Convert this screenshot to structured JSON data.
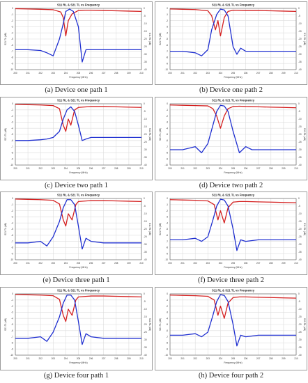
{
  "chart_data": [
    {
      "type": "line",
      "title": "S11 RL  &  S21 TL   vs    Frequency",
      "xlabel": "Frequency (MHz)",
      "ylabel_left": "S21 TL (dB)",
      "ylabel_right": "S11 RL (dB)",
      "xlim": [
        200,
        210
      ],
      "ylim_left": [
        -10,
        0
      ],
      "ylim_right": [
        -40,
        0
      ],
      "x_ticks": [
        "200",
        "201",
        "202",
        "203",
        "204",
        "205",
        "206",
        "207",
        "208",
        "209",
        "210"
      ],
      "y_left_ticks": [
        "0",
        "-1",
        "-2",
        "-3",
        "-4",
        "-5",
        "-6",
        "-7",
        "-8",
        "-9",
        "-10"
      ],
      "y_right_ticks": [
        "0",
        "-5",
        "-10",
        "-15",
        "-20",
        "-25",
        "-30",
        "-35",
        "-40"
      ],
      "grid": true,
      "series": [
        {
          "color": "#d42020",
          "x": [
            200,
            201,
            202,
            203,
            203.6,
            203.8,
            204.0,
            204.2,
            204.5,
            205,
            205.5,
            206,
            207,
            208,
            209,
            210
          ],
          "y": [
            -0.05,
            -0.1,
            -0.15,
            -0.22,
            -0.6,
            -1.5,
            -4.5,
            -2.0,
            -0.9,
            -0.35,
            -0.3,
            -0.3,
            -0.35,
            -0.4,
            -0.45,
            -0.5
          ]
        },
        {
          "color": "#1f2fd0",
          "x": [
            200,
            201,
            202,
            202.5,
            203,
            203.5,
            203.8,
            204.0,
            204.3,
            204.6,
            205,
            205.3,
            205.6,
            206,
            207,
            208,
            209,
            210
          ],
          "y": [
            -27,
            -27,
            -27.5,
            -29,
            -31,
            -20,
            -10,
            -2,
            -0.5,
            -2,
            -12,
            -35,
            -27,
            -27,
            -27,
            -27,
            -27,
            -27
          ]
        }
      ]
    },
    {
      "type": "line",
      "title": "S11 RL  &  S21 TL   vs    Frequency",
      "xlabel": "Frequency (MHz)",
      "ylabel_left": "S21 TL (dB)",
      "ylabel_right": "S11 RL (dB)",
      "xlim": [
        200,
        210
      ],
      "ylim_left": [
        -10,
        0
      ],
      "ylim_right": [
        -40,
        0
      ],
      "x_ticks": [
        "200",
        "201",
        "202",
        "203",
        "204",
        "205",
        "206",
        "207",
        "208",
        "209",
        "210"
      ],
      "y_left_ticks": [
        "0",
        "-1",
        "-2",
        "-3",
        "-4",
        "-5",
        "-6",
        "-7",
        "-8",
        "-9",
        "-10"
      ],
      "y_right_ticks": [
        "0",
        "-5",
        "-10",
        "-15",
        "-20",
        "-25",
        "-30",
        "-35",
        "-40"
      ],
      "grid": true,
      "series": [
        {
          "color": "#d42020",
          "x": [
            200,
            201,
            202,
            203,
            203.3,
            203.6,
            203.8,
            204.0,
            204.3,
            204.6,
            205,
            206,
            207,
            208,
            209,
            210
          ],
          "y": [
            -0.1,
            -0.15,
            -0.2,
            -0.4,
            -1.2,
            -3.5,
            -2,
            -4.5,
            -1.5,
            -0.5,
            -0.3,
            -0.35,
            -0.35,
            -0.4,
            -0.45,
            -0.5
          ]
        },
        {
          "color": "#1f2fd0",
          "x": [
            200,
            201,
            202,
            202.5,
            203,
            203.3,
            203.7,
            204.0,
            204.3,
            204.6,
            205,
            205.3,
            205.6,
            206,
            207,
            208,
            209,
            210
          ],
          "y": [
            -28,
            -28,
            -29,
            -31,
            -27,
            -14,
            -4,
            -0.5,
            -1,
            -5,
            -25,
            -30,
            -26,
            -28,
            -28,
            -28,
            -28,
            -28
          ]
        }
      ]
    },
    {
      "type": "line",
      "title": "S11 RL  &  S21 TL   vs    Frequency",
      "xlabel": "Frequency (MHz)",
      "ylabel_left": "S21 TL (dB)",
      "ylabel_right": "S11 RL (dB)",
      "xlim": [
        200,
        210
      ],
      "ylim_left": [
        -10,
        0
      ],
      "ylim_right": [
        -40,
        0
      ],
      "x_ticks": [
        "200",
        "201",
        "202",
        "203",
        "204",
        "205",
        "206",
        "207",
        "208",
        "209",
        "210"
      ],
      "y_left_ticks": [
        "0",
        "-1",
        "-2",
        "-3",
        "-4",
        "-5",
        "-6",
        "-7",
        "-8",
        "-9",
        "-10"
      ],
      "y_right_ticks": [
        "0",
        "-5",
        "-10",
        "-15",
        "-20",
        "-25",
        "-30",
        "-35",
        "-40"
      ],
      "grid": true,
      "series": [
        {
          "color": "#d42020",
          "x": [
            200,
            201,
            202,
            203,
            203.5,
            203.8,
            204.0,
            204.2,
            204.4,
            204.7,
            205,
            206,
            207,
            208,
            209,
            210
          ],
          "y": [
            -0.1,
            -0.15,
            -0.2,
            -0.3,
            -0.8,
            -3.5,
            -4.5,
            -2.5,
            -3.5,
            -1,
            -0.6,
            -0.45,
            -0.45,
            -0.5,
            -0.55,
            -0.6
          ]
        },
        {
          "color": "#1f2fd0",
          "x": [
            200,
            201,
            202,
            202.5,
            203,
            203.5,
            203.8,
            204.1,
            204.4,
            204.7,
            205,
            205.3,
            205.6,
            206,
            207,
            208,
            209,
            210
          ],
          "y": [
            -24,
            -24,
            -23.5,
            -23,
            -22,
            -18,
            -10,
            -4,
            -2,
            -5,
            -14,
            -24,
            -23,
            -22,
            -22,
            -22,
            -22,
            -22
          ]
        }
      ]
    },
    {
      "type": "line",
      "title": "S11 RL  &  S21 TL   vs    Frequency",
      "xlabel": "Frequency (MHz)",
      "ylabel_left": "S21 TL (dB)",
      "ylabel_right": "S11 RL (dB)",
      "xlim": [
        200,
        210
      ],
      "ylim_left": [
        -10,
        0
      ],
      "ylim_right": [
        -40,
        0
      ],
      "x_ticks": [
        "200",
        "201",
        "202",
        "203",
        "204",
        "205",
        "206",
        "207",
        "208",
        "209",
        "210"
      ],
      "y_left_ticks": [
        "0",
        "-1",
        "-2",
        "-3",
        "-4",
        "-5",
        "-6",
        "-7",
        "-8",
        "-9",
        "-10"
      ],
      "y_right_ticks": [
        "0",
        "-5",
        "-10",
        "-15",
        "-20",
        "-25",
        "-30",
        "-35",
        "-40"
      ],
      "grid": true,
      "series": [
        {
          "color": "#d42020",
          "x": [
            200,
            201,
            202,
            203,
            203.4,
            203.7,
            204.0,
            204.3,
            204.6,
            205,
            205.5,
            206,
            207,
            208,
            209,
            210
          ],
          "y": [
            -0.2,
            -0.25,
            -0.3,
            -0.35,
            -0.8,
            -2,
            -4,
            -2,
            -0.8,
            -0.45,
            -0.4,
            -0.45,
            -0.5,
            -0.55,
            -0.6,
            -0.65
          ]
        },
        {
          "color": "#1f2fd0",
          "x": [
            200,
            201,
            202,
            202.5,
            203,
            203.4,
            203.7,
            204.0,
            204.3,
            204.6,
            205,
            205.5,
            206,
            206.5,
            207,
            208,
            209,
            210
          ],
          "y": [
            -30,
            -30,
            -28,
            -32,
            -26,
            -14,
            -5,
            -1,
            -1.5,
            -5,
            -18,
            -32,
            -28,
            -30,
            -30,
            -30,
            -30,
            -30
          ]
        }
      ]
    },
    {
      "type": "line",
      "title": "S11 RL  &  S21 TL   vs    Frequency",
      "xlabel": "Frequency (MHz)",
      "ylabel_left": "S21 TL (dB)",
      "ylabel_right": "S11 RL (dB)",
      "xlim": [
        200,
        210
      ],
      "ylim_left": [
        -10,
        0
      ],
      "ylim_right": [
        -40,
        0
      ],
      "x_ticks": [
        "200",
        "201",
        "202",
        "203",
        "204",
        "205",
        "206",
        "207",
        "208",
        "209",
        "210"
      ],
      "y_left_ticks": [
        "0",
        "-1",
        "-2",
        "-3",
        "-4",
        "-5",
        "-6",
        "-7",
        "-8",
        "-9",
        "-10"
      ],
      "y_right_ticks": [
        "0",
        "-5",
        "-10",
        "-15",
        "-20",
        "-25",
        "-30",
        "-35",
        "-40"
      ],
      "grid": true,
      "series": [
        {
          "color": "#d42020",
          "x": [
            200,
            201,
            202,
            203,
            203.5,
            203.8,
            204.0,
            204.2,
            204.5,
            204.8,
            205,
            206,
            207,
            208,
            209,
            210
          ],
          "y": [
            -0.1,
            -0.15,
            -0.2,
            -0.3,
            -0.9,
            -3.5,
            -4.5,
            -2.5,
            -3.5,
            -1,
            -0.5,
            -0.35,
            -0.35,
            -0.4,
            -0.45,
            -0.5
          ]
        },
        {
          "color": "#1f2fd0",
          "x": [
            200,
            201,
            202,
            202.5,
            203,
            203.5,
            203.8,
            204.1,
            204.4,
            204.7,
            205,
            205.3,
            205.6,
            206,
            207,
            208,
            209,
            210
          ],
          "y": [
            -29,
            -29,
            -28,
            -31,
            -25,
            -15,
            -6,
            -0.8,
            -0.8,
            -4,
            -18,
            -33,
            -26,
            -28,
            -29,
            -29,
            -29,
            -29
          ]
        }
      ]
    },
    {
      "type": "line",
      "title": "S11 RL  &  S21 TL   vs    Frequency",
      "xlabel": "Frequency (MHz)",
      "ylabel_left": "S21 TL (dB)",
      "ylabel_right": "S11 RL (dB)",
      "xlim": [
        200,
        210
      ],
      "ylim_left": [
        -10,
        0
      ],
      "ylim_right": [
        -40,
        0
      ],
      "x_ticks": [
        "200",
        "201",
        "202",
        "203",
        "204",
        "205",
        "206",
        "207",
        "208",
        "209",
        "210"
      ],
      "y_left_ticks": [
        "0",
        "-1",
        "-2",
        "-3",
        "-4",
        "-5",
        "-6",
        "-7",
        "-8",
        "-9",
        "-10"
      ],
      "y_right_ticks": [
        "0",
        "-5",
        "-10",
        "-15",
        "-20",
        "-25",
        "-30",
        "-35",
        "-40"
      ],
      "grid": true,
      "series": [
        {
          "color": "#d42020",
          "x": [
            200,
            201,
            202,
            203,
            203.5,
            203.8,
            204.0,
            204.3,
            204.6,
            205,
            205.5,
            206,
            207,
            208,
            209,
            210
          ],
          "y": [
            -0.2,
            -0.25,
            -0.3,
            -0.4,
            -1,
            -3.5,
            -2,
            -4,
            -1.5,
            -0.6,
            -0.5,
            -0.5,
            -0.55,
            -0.6,
            -0.65,
            -0.7
          ]
        },
        {
          "color": "#1f2fd0",
          "x": [
            200,
            201,
            202,
            202.5,
            203,
            203.4,
            203.7,
            204.0,
            204.3,
            204.6,
            205,
            205.3,
            205.6,
            206,
            207,
            208,
            209,
            210
          ],
          "y": [
            -27,
            -27,
            -26,
            -28,
            -25,
            -14,
            -5,
            -0.5,
            -1,
            -5,
            -20,
            -34,
            -27,
            -28,
            -27,
            -27,
            -27,
            -27
          ]
        }
      ]
    },
    {
      "type": "line",
      "title": "S11 RL  &  S21 TL   vs    Frequency",
      "xlabel": "Frequency (MHz)",
      "ylabel_left": "S21 TL (dB)",
      "ylabel_right": "S11 RL (dB)",
      "xlim": [
        200,
        210
      ],
      "ylim_left": [
        -10,
        0
      ],
      "ylim_right": [
        -40,
        0
      ],
      "x_ticks": [
        "200",
        "201",
        "202",
        "203",
        "204",
        "205",
        "206",
        "207",
        "208",
        "209",
        "210"
      ],
      "y_left_ticks": [
        "0",
        "-1",
        "-2",
        "-3",
        "-4",
        "-5",
        "-6",
        "-7",
        "-8",
        "-9",
        "-10"
      ],
      "y_right_ticks": [
        "0",
        "-5",
        "-10",
        "-15",
        "-20",
        "-25",
        "-30",
        "-35",
        "-40"
      ],
      "grid": true,
      "series": [
        {
          "color": "#d42020",
          "x": [
            200,
            201,
            202,
            203,
            203.5,
            203.8,
            204.0,
            204.2,
            204.5,
            204.8,
            205,
            206,
            207,
            208,
            209,
            210
          ],
          "y": [
            -0.1,
            -0.15,
            -0.2,
            -0.3,
            -0.9,
            -3.5,
            -4.5,
            -2.5,
            -3.5,
            -1,
            -0.5,
            -0.35,
            -0.35,
            -0.4,
            -0.45,
            -0.5
          ]
        },
        {
          "color": "#1f2fd0",
          "x": [
            200,
            201,
            202,
            202.5,
            203,
            203.5,
            203.8,
            204.1,
            204.4,
            204.7,
            205,
            205.3,
            205.6,
            206,
            207,
            208,
            209,
            210
          ],
          "y": [
            -29,
            -29,
            -28,
            -31,
            -25,
            -15,
            -6,
            -0.8,
            -0.8,
            -4,
            -18,
            -33,
            -26,
            -28,
            -29,
            -29,
            -29,
            -29
          ]
        }
      ]
    },
    {
      "type": "line",
      "title": "S11 RL  &  S21 TL   vs    Frequency",
      "xlabel": "Frequency (MHz)",
      "ylabel_left": "S21 TL (dB)",
      "ylabel_right": "S11 RL (dB)",
      "xlim": [
        200,
        210
      ],
      "ylim_left": [
        -10,
        0
      ],
      "ylim_right": [
        -40,
        0
      ],
      "x_ticks": [
        "200",
        "201",
        "202",
        "203",
        "204",
        "205",
        "206",
        "207",
        "208",
        "209",
        "210"
      ],
      "y_left_ticks": [
        "0",
        "-1",
        "-2",
        "-3",
        "-4",
        "-5",
        "-6",
        "-7",
        "-8",
        "-9",
        "-10"
      ],
      "y_right_ticks": [
        "0",
        "-5",
        "-10",
        "-15",
        "-20",
        "-25",
        "-30",
        "-35",
        "-40"
      ],
      "grid": true,
      "series": [
        {
          "color": "#d42020",
          "x": [
            200,
            201,
            202,
            203,
            203.5,
            203.8,
            204.0,
            204.3,
            204.6,
            205,
            205.5,
            206,
            207,
            208,
            209,
            210
          ],
          "y": [
            -0.2,
            -0.25,
            -0.3,
            -0.4,
            -1,
            -3.5,
            -2,
            -4,
            -1.5,
            -0.6,
            -0.5,
            -0.5,
            -0.55,
            -0.6,
            -0.65,
            -0.7
          ]
        },
        {
          "color": "#1f2fd0",
          "x": [
            200,
            201,
            202,
            202.5,
            203,
            203.4,
            203.7,
            204.0,
            204.3,
            204.6,
            205,
            205.3,
            205.6,
            206,
            207,
            208,
            209,
            210
          ],
          "y": [
            -27,
            -27,
            -26,
            -28,
            -25,
            -14,
            -5,
            -0.5,
            -1,
            -5,
            -20,
            -34,
            -27,
            -28,
            -27,
            -27,
            -27,
            -27
          ]
        }
      ]
    }
  ],
  "captions": [
    "(a) Device one path 1",
    "(b) Device one path 2",
    "(c) Device two path 1",
    "(d) Device two path 2",
    "(e) Device three path 1",
    "(f) Device three path 2",
    "(g) Device four path 1",
    "(h) Device four path 2"
  ]
}
